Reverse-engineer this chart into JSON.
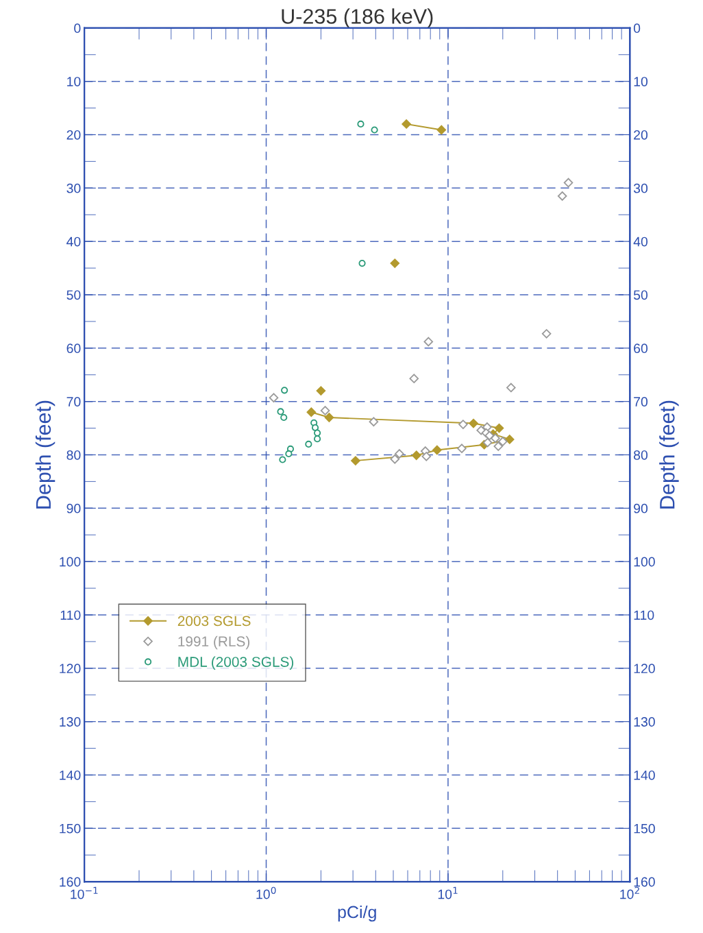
{
  "chart_data": {
    "type": "scatter",
    "title": "U-235 (186 keV)",
    "xlabel": "pCi/g",
    "ylabel": "Depth (feet)",
    "y2label": "Depth (feet)",
    "log": "x",
    "xlim": [
      0.1,
      100
    ],
    "xticks": [
      {
        "value": 0.1,
        "label": "10$^{−1}$"
      },
      {
        "value": 1,
        "label": "10$^{0}$"
      },
      {
        "value": 10,
        "label": "10$^{1}$"
      },
      {
        "value": 100,
        "label": "10$^{2}$"
      }
    ],
    "ylim": [
      160,
      0
    ],
    "yticks": [
      0,
      10,
      20,
      30,
      40,
      50,
      60,
      70,
      80,
      90,
      100,
      110,
      120,
      130,
      140,
      150,
      160
    ],
    "y2lim": [
      160,
      0
    ],
    "y2ticks": [
      0,
      10,
      20,
      30,
      40,
      50,
      60,
      70,
      80,
      90,
      100,
      110,
      120,
      130,
      140,
      150,
      160
    ],
    "grid": true,
    "legend": "left",
    "series": [
      {
        "name": "2003 SGLS",
        "type": "line",
        "color": "#b39a2e",
        "marker": "diamond",
        "x": [
          5.9,
          9.2,
          null,
          5.1,
          null,
          2.0,
          null,
          1.77,
          2.22,
          13.8,
          19.1,
          17.7,
          21.8,
          15.8,
          8.7,
          6.7,
          3.1
        ],
        "values": [
          18.0,
          19.1,
          null,
          44.1,
          null,
          68.0,
          null,
          72.0,
          73.0,
          74.1,
          75.0,
          76.1,
          77.1,
          78.1,
          79.1,
          80.1,
          81.1
        ]
      },
      {
        "name": "1991 (RLS)",
        "color": "#9a9a9a",
        "marker": "diamond_open",
        "x": [
          45.9,
          42.5,
          34.8,
          7.8,
          6.5,
          22.2,
          1.1,
          2.11,
          3.9,
          12.1,
          15.2,
          16.4,
          16.2,
          16.9,
          18.2,
          20.0,
          18.9,
          16.5,
          11.9,
          7.5,
          7.6,
          5.4,
          5.1
        ],
        "values": [
          29.0,
          31.5,
          57.3,
          58.8,
          65.7,
          67.4,
          69.3,
          71.7,
          73.8,
          74.3,
          75.4,
          74.8,
          75.9,
          76.4,
          76.9,
          77.5,
          78.4,
          77.7,
          78.8,
          79.3,
          80.3,
          79.8,
          80.8
        ]
      },
      {
        "name": "MDL (2003 SGLS)",
        "color": "#2a9a78",
        "marker": "circle_open",
        "x": [
          3.31,
          3.94,
          3.37,
          1.26,
          1.2,
          1.25,
          1.83,
          1.86,
          1.91,
          1.91,
          1.71,
          1.36,
          1.33,
          1.23
        ],
        "values": [
          18.0,
          19.1,
          44.1,
          67.9,
          71.9,
          73.0,
          74.0,
          74.9,
          75.9,
          77.0,
          78.0,
          78.9,
          79.8,
          80.9
        ]
      }
    ]
  }
}
